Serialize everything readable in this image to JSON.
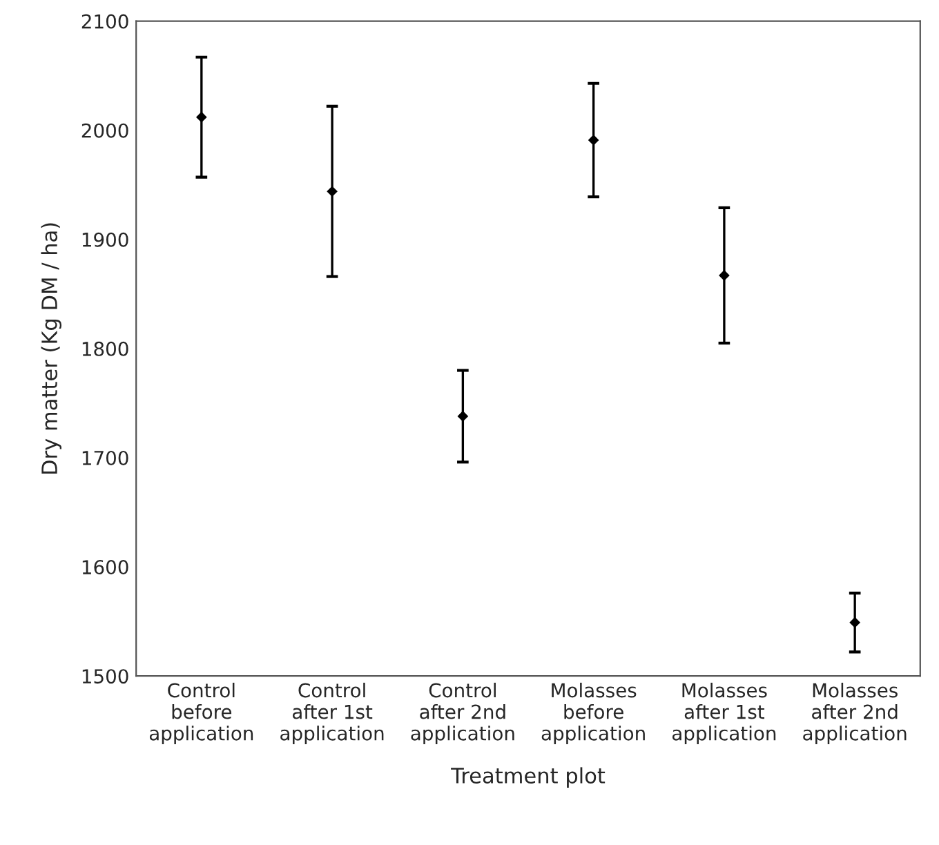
{
  "chart_data": {
    "type": "scatter",
    "xlabel": "Treatment plot",
    "ylabel": "Dry matter (Kg DM / ha)",
    "categories": [
      "Control\nbefore\napplication",
      "Control\nafter 1st\napplication",
      "Control\nafter 2nd\napplication",
      "Molasses\nbefore\napplication",
      "Molasses\nafter 1st\napplication",
      "Molasses\nafter 2nd\napplication"
    ],
    "series": [
      {
        "color": "#000000",
        "values": [
          2012,
          1944,
          1738,
          1991,
          1867,
          1549
        ],
        "errors": [
          55,
          78,
          42,
          52,
          62,
          27
        ]
      }
    ],
    "ylim": [
      1500,
      2100
    ],
    "yticks": [
      1500,
      1600,
      1700,
      1800,
      1900,
      2000,
      2100
    ],
    "marker": "diamond",
    "grid": false
  }
}
